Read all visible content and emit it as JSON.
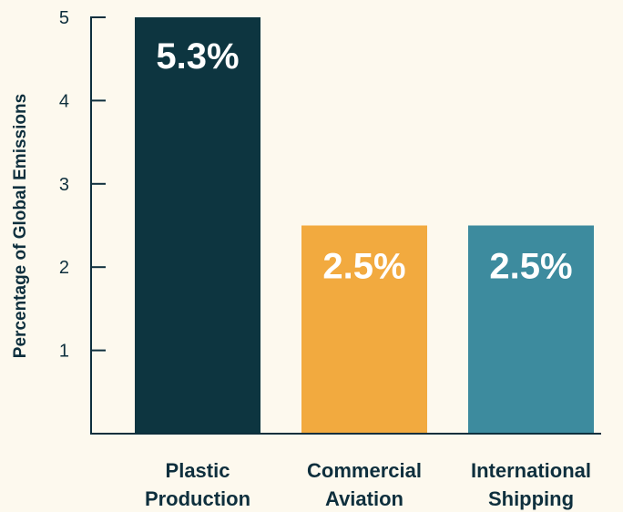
{
  "chart_data": {
    "type": "bar",
    "title": "",
    "xlabel": "",
    "ylabel": "Percentage of Global Emissions",
    "ylim": [
      0,
      5
    ],
    "yticks": [
      1,
      2,
      3,
      4,
      5
    ],
    "grid": false,
    "categories": [
      [
        "Plastic",
        "Production"
      ],
      [
        "Commercial",
        "Aviation"
      ],
      [
        "International",
        "Shipping"
      ]
    ],
    "values": [
      5.3,
      2.5,
      2.5
    ],
    "data_labels": [
      "5.3%",
      "2.5%",
      "2.5%"
    ],
    "colors": [
      "#0d3540",
      "#f2aa3f",
      "#3d8b9e"
    ],
    "axis_color": "#0e2f3d",
    "background": "#fdf9ee"
  }
}
